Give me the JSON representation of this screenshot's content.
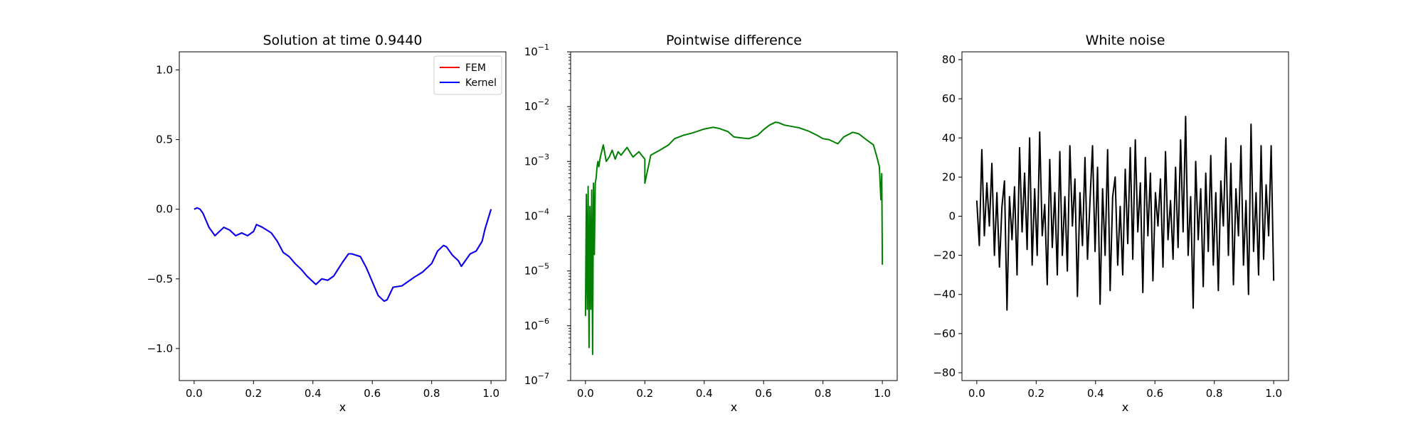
{
  "chart_data": [
    {
      "type": "line",
      "title": "Solution at time 0.9440",
      "xlabel": "x",
      "ylabel": "",
      "xlim": [
        -0.05,
        1.05
      ],
      "ylim": [
        -1.23,
        1.13
      ],
      "xticks": [
        0.0,
        0.2,
        0.4,
        0.6,
        0.8,
        1.0
      ],
      "xtick_labels": [
        "0.0",
        "0.2",
        "0.4",
        "0.6",
        "0.8",
        "1.0"
      ],
      "yticks": [
        -1.0,
        -0.5,
        0.0,
        0.5,
        1.0
      ],
      "ytick_labels": [
        "−1.0",
        "−0.5",
        "0.0",
        "0.5",
        "1.0"
      ],
      "grid": false,
      "legend": "top-right",
      "series": [
        {
          "name": "FEM",
          "color": "#ff0000",
          "x": [
            0.0,
            0.01,
            0.02,
            0.03,
            0.05,
            0.07,
            0.08,
            0.1,
            0.12,
            0.14,
            0.16,
            0.18,
            0.2,
            0.21,
            0.23,
            0.26,
            0.28,
            0.3,
            0.32,
            0.34,
            0.36,
            0.38,
            0.41,
            0.43,
            0.45,
            0.47,
            0.5,
            0.52,
            0.53,
            0.56,
            0.58,
            0.6,
            0.62,
            0.64,
            0.65,
            0.67,
            0.7,
            0.72,
            0.74,
            0.77,
            0.8,
            0.82,
            0.84,
            0.85,
            0.87,
            0.89,
            0.9,
            0.91,
            0.93,
            0.95,
            0.97,
            0.98,
            1.0
          ],
          "y": [
            0.0,
            0.01,
            0.0,
            -0.03,
            -0.13,
            -0.19,
            -0.17,
            -0.13,
            -0.15,
            -0.19,
            -0.17,
            -0.19,
            -0.16,
            -0.11,
            -0.13,
            -0.17,
            -0.23,
            -0.31,
            -0.34,
            -0.39,
            -0.43,
            -0.48,
            -0.54,
            -0.5,
            -0.51,
            -0.48,
            -0.38,
            -0.32,
            -0.32,
            -0.34,
            -0.42,
            -0.52,
            -0.62,
            -0.66,
            -0.65,
            -0.56,
            -0.55,
            -0.52,
            -0.49,
            -0.45,
            -0.39,
            -0.3,
            -0.26,
            -0.27,
            -0.33,
            -0.37,
            -0.41,
            -0.38,
            -0.32,
            -0.3,
            -0.23,
            -0.14,
            0.0
          ]
        },
        {
          "name": "Kernel",
          "color": "#0000ff",
          "x": [
            0.0,
            0.01,
            0.02,
            0.03,
            0.05,
            0.07,
            0.08,
            0.1,
            0.12,
            0.14,
            0.16,
            0.18,
            0.2,
            0.21,
            0.23,
            0.26,
            0.28,
            0.3,
            0.32,
            0.34,
            0.36,
            0.38,
            0.41,
            0.43,
            0.45,
            0.47,
            0.5,
            0.52,
            0.53,
            0.56,
            0.58,
            0.6,
            0.62,
            0.64,
            0.65,
            0.67,
            0.7,
            0.72,
            0.74,
            0.77,
            0.8,
            0.82,
            0.84,
            0.85,
            0.87,
            0.89,
            0.9,
            0.91,
            0.93,
            0.95,
            0.97,
            0.98,
            1.0
          ],
          "y": [
            0.0,
            0.01,
            0.0,
            -0.03,
            -0.13,
            -0.19,
            -0.17,
            -0.13,
            -0.15,
            -0.19,
            -0.17,
            -0.19,
            -0.16,
            -0.11,
            -0.13,
            -0.17,
            -0.23,
            -0.31,
            -0.34,
            -0.39,
            -0.43,
            -0.48,
            -0.54,
            -0.5,
            -0.51,
            -0.48,
            -0.38,
            -0.32,
            -0.32,
            -0.34,
            -0.42,
            -0.52,
            -0.62,
            -0.66,
            -0.65,
            -0.56,
            -0.55,
            -0.52,
            -0.49,
            -0.45,
            -0.39,
            -0.3,
            -0.26,
            -0.27,
            -0.33,
            -0.37,
            -0.41,
            -0.38,
            -0.32,
            -0.3,
            -0.23,
            -0.14,
            0.0
          ]
        }
      ]
    },
    {
      "type": "line",
      "title": "Pointwise difference",
      "xlabel": "x",
      "ylabel": "",
      "yscale": "log",
      "xlim": [
        -0.05,
        1.05
      ],
      "ylim": [
        1e-07,
        0.1
      ],
      "xticks": [
        0.0,
        0.2,
        0.4,
        0.6,
        0.8,
        1.0
      ],
      "xtick_labels": [
        "0.0",
        "0.2",
        "0.4",
        "0.6",
        "0.8",
        "1.0"
      ],
      "yticks": [
        1e-07,
        1e-06,
        1e-05,
        0.0001,
        0.001,
        0.01,
        0.1
      ],
      "ytick_labels": [
        "10",
        "10",
        "10",
        "10",
        "10",
        "10",
        "10"
      ],
      "ytick_exponents": [
        "−7",
        "−6",
        "−5",
        "−4",
        "−3",
        "−2",
        "−1"
      ],
      "grid": false,
      "series": [
        {
          "color": "#008000",
          "x": [
            0.0,
            0.003,
            0.006,
            0.009,
            0.012,
            0.015,
            0.018,
            0.021,
            0.024,
            0.027,
            0.03,
            0.033,
            0.036,
            0.039,
            0.042,
            0.045,
            0.05,
            0.06,
            0.07,
            0.08,
            0.09,
            0.1,
            0.11,
            0.12,
            0.14,
            0.16,
            0.18,
            0.2,
            0.2,
            0.22,
            0.25,
            0.28,
            0.3,
            0.33,
            0.36,
            0.4,
            0.43,
            0.45,
            0.48,
            0.5,
            0.52,
            0.55,
            0.58,
            0.6,
            0.62,
            0.64,
            0.65,
            0.67,
            0.7,
            0.72,
            0.75,
            0.78,
            0.8,
            0.82,
            0.85,
            0.87,
            0.9,
            0.92,
            0.95,
            0.97,
            0.98,
            0.99,
            0.995,
            0.998,
            1.0
          ],
          "y": [
            1.5e-06,
            0.00025,
            2e-06,
            0.00035,
            4e-07,
            0.00015,
            2e-06,
            0.0003,
            3e-07,
            0.0004,
            2e-05,
            0.0004,
            0.0005,
            0.0008,
            0.001,
            0.0008,
            0.0012,
            0.002,
            0.001,
            0.0012,
            0.0016,
            0.0011,
            0.0015,
            0.0013,
            0.0018,
            0.0012,
            0.0015,
            0.0011,
            0.0004,
            0.0013,
            0.0016,
            0.002,
            0.0026,
            0.003,
            0.0033,
            0.0039,
            0.0042,
            0.004,
            0.0035,
            0.0028,
            0.0027,
            0.0026,
            0.003,
            0.0038,
            0.0046,
            0.0052,
            0.0051,
            0.0046,
            0.0043,
            0.0041,
            0.0036,
            0.003,
            0.0026,
            0.0025,
            0.0021,
            0.0028,
            0.0034,
            0.0032,
            0.0024,
            0.002,
            0.0013,
            0.0008,
            0.0002,
            0.0006,
            1.3e-05
          ]
        }
      ]
    },
    {
      "type": "line",
      "title": "White noise",
      "xlabel": "x",
      "ylabel": "",
      "xlim": [
        -0.05,
        1.05
      ],
      "ylim": [
        -84,
        84
      ],
      "xticks": [
        0.0,
        0.2,
        0.4,
        0.6,
        0.8,
        1.0
      ],
      "xtick_labels": [
        "0.0",
        "0.2",
        "0.4",
        "0.6",
        "0.8",
        "1.0"
      ],
      "yticks": [
        -80,
        -60,
        -40,
        -20,
        0,
        20,
        40,
        60,
        80
      ],
      "ytick_labels": [
        "−80",
        "−60",
        "−40",
        "−20",
        "0",
        "20",
        "40",
        "60",
        "80"
      ],
      "grid": false,
      "series": [
        {
          "color": "#000000",
          "x_range": [
            0.0,
            1.0
          ],
          "values": [
            8,
            -15,
            34,
            -10,
            17,
            -5,
            27,
            -20,
            12,
            -26,
            5,
            18,
            -48,
            10,
            -12,
            15,
            -30,
            35,
            -8,
            22,
            -17,
            40,
            -25,
            14,
            -20,
            43,
            -10,
            6,
            -35,
            29,
            -16,
            12,
            -30,
            33,
            -20,
            10,
            -28,
            36,
            -5,
            19,
            -41,
            12,
            -15,
            30,
            -22,
            8,
            36,
            -18,
            25,
            -45,
            14,
            -20,
            34,
            -38,
            10,
            20,
            -25,
            5,
            -30,
            24,
            -14,
            35,
            -22,
            39,
            -8,
            17,
            -39,
            30,
            -10,
            22,
            -33,
            12,
            -5,
            19,
            -26,
            33,
            -12,
            8,
            -22,
            25,
            -16,
            39,
            -8,
            51,
            -20,
            10,
            -47,
            28,
            -12,
            14,
            -36,
            22,
            -18,
            31,
            -25,
            12,
            -38,
            18,
            -5,
            40,
            -20,
            27,
            -35,
            14,
            -10,
            36,
            -25,
            8,
            -40,
            47,
            -18,
            12,
            -30,
            36,
            -22,
            16,
            -10,
            36,
            -33
          ]
        }
      ]
    }
  ]
}
